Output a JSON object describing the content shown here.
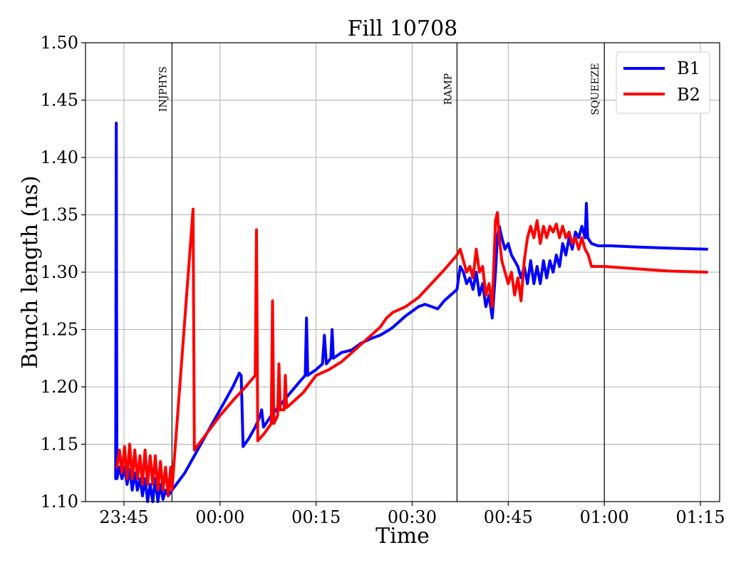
{
  "chart_data": {
    "type": "line",
    "title": "Fill 10708",
    "xlabel": "Time",
    "ylabel": "Bunch length (ns)",
    "x_axis": {
      "type": "time",
      "range": [
        "23:39",
        "01:18"
      ]
    },
    "ylim": [
      1.1,
      1.5
    ],
    "yticks": [
      "1.10",
      "1.15",
      "1.20",
      "1.25",
      "1.30",
      "1.35",
      "1.40",
      "1.45",
      "1.50"
    ],
    "xticks": [
      "23:45",
      "00:00",
      "00:15",
      "00:30",
      "00:45",
      "01:00",
      "01:15"
    ],
    "grid": true,
    "legend": {
      "position": "top-right"
    },
    "phases": [
      {
        "label": "INJPHYS",
        "time": "23:52.5"
      },
      {
        "label": "RAMP",
        "time": "00:37"
      },
      {
        "label": "SQUEEZE",
        "time": "01:00"
      }
    ],
    "series": [
      {
        "name": "B1",
        "color": "#0000ff",
        "points": [
          [
            "23:43.7",
            1.12
          ],
          [
            "23:43.8",
            1.43
          ],
          [
            "23:43.9",
            1.12
          ],
          [
            "23:44.3",
            1.13
          ],
          [
            "23:44.7",
            1.12
          ],
          [
            "23:45.1",
            1.13
          ],
          [
            "23:45.5",
            1.115
          ],
          [
            "23:45.9",
            1.128
          ],
          [
            "23:46.3",
            1.11
          ],
          [
            "23:46.7",
            1.125
          ],
          [
            "23:47.1",
            1.11
          ],
          [
            "23:47.5",
            1.12
          ],
          [
            "23:47.9",
            1.105
          ],
          [
            "23:48.3",
            1.12
          ],
          [
            "23:48.7",
            1.1
          ],
          [
            "23:49.1",
            1.115
          ],
          [
            "23:49.5",
            1.1
          ],
          [
            "23:49.9",
            1.12
          ],
          [
            "23:50.3",
            1.1
          ],
          [
            "23:50.7",
            1.115
          ],
          [
            "23:51.1",
            1.102
          ],
          [
            "23:51.5",
            1.11
          ],
          [
            "23:51.9",
            1.105
          ],
          [
            "23:52.5",
            1.11
          ],
          [
            "23:54.5",
            1.125
          ],
          [
            "23:56",
            1.14
          ],
          [
            "23:58",
            1.16
          ],
          [
            "00:00",
            1.18
          ],
          [
            "00:02",
            1.2
          ],
          [
            "00:03",
            1.212
          ],
          [
            "00:03.3",
            1.21
          ],
          [
            "00:03.6",
            1.148
          ],
          [
            "00:04.5",
            1.155
          ],
          [
            "00:05.5",
            1.165
          ],
          [
            "00:06.3",
            1.175
          ],
          [
            "00:06.5",
            1.18
          ],
          [
            "00:06.8",
            1.165
          ],
          [
            "00:08",
            1.175
          ],
          [
            "00:09.5",
            1.185
          ],
          [
            "00:11",
            1.195
          ],
          [
            "00:12.5",
            1.205
          ],
          [
            "00:13.3",
            1.21
          ],
          [
            "00:13.5",
            1.26
          ],
          [
            "00:13.7",
            1.21
          ],
          [
            "00:15",
            1.215
          ],
          [
            "00:16",
            1.22
          ],
          [
            "00:16.3",
            1.245
          ],
          [
            "00:16.6",
            1.22
          ],
          [
            "00:17.3",
            1.225
          ],
          [
            "00:17.5",
            1.25
          ],
          [
            "00:17.7",
            1.225
          ],
          [
            "00:19",
            1.23
          ],
          [
            "00:20.5",
            1.232
          ],
          [
            "00:22",
            1.238
          ],
          [
            "00:23.5",
            1.242
          ],
          [
            "00:25",
            1.245
          ],
          [
            "00:26.5",
            1.25
          ],
          [
            "00:27",
            1.252
          ],
          [
            "00:29",
            1.262
          ],
          [
            "00:31",
            1.27
          ],
          [
            "00:32",
            1.272
          ],
          [
            "00:33",
            1.27
          ],
          [
            "00:34",
            1.268
          ],
          [
            "00:35",
            1.275
          ],
          [
            "00:37",
            1.285
          ],
          [
            "00:37.5",
            1.305
          ],
          [
            "00:38",
            1.3
          ],
          [
            "00:38.5",
            1.29
          ],
          [
            "00:39",
            1.295
          ],
          [
            "00:39.5",
            1.285
          ],
          [
            "00:40",
            1.3
          ],
          [
            "00:40.5",
            1.28
          ],
          [
            "00:41",
            1.29
          ],
          [
            "00:41.5",
            1.27
          ],
          [
            "00:42",
            1.28
          ],
          [
            "00:42.5",
            1.26
          ],
          [
            "00:43",
            1.3
          ],
          [
            "00:43.3",
            1.33
          ],
          [
            "00:43.6",
            1.34
          ],
          [
            "00:44",
            1.33
          ],
          [
            "00:44.5",
            1.32
          ],
          [
            "00:45",
            1.325
          ],
          [
            "00:45.5",
            1.315
          ],
          [
            "00:46",
            1.31
          ],
          [
            "00:46.5",
            1.305
          ],
          [
            "00:47",
            1.295
          ],
          [
            "00:47.5",
            1.305
          ],
          [
            "00:48",
            1.29
          ],
          [
            "00:48.5",
            1.31
          ],
          [
            "00:49",
            1.29
          ],
          [
            "00:49.5",
            1.305
          ],
          [
            "00:50",
            1.29
          ],
          [
            "00:50.5",
            1.31
          ],
          [
            "00:51",
            1.295
          ],
          [
            "00:51.5",
            1.31
          ],
          [
            "00:52",
            1.3
          ],
          [
            "00:52.5",
            1.315
          ],
          [
            "00:53",
            1.305
          ],
          [
            "00:53.5",
            1.325
          ],
          [
            "00:54",
            1.315
          ],
          [
            "00:54.5",
            1.33
          ],
          [
            "00:55",
            1.32
          ],
          [
            "00:55.5",
            1.335
          ],
          [
            "00:56",
            1.33
          ],
          [
            "00:56.5",
            1.34
          ],
          [
            "00:57",
            1.33
          ],
          [
            "00:57.2",
            1.36
          ],
          [
            "00:57.4",
            1.33
          ],
          [
            "00:58",
            1.325
          ],
          [
            "00:59",
            1.323
          ],
          [
            "01:01",
            1.323
          ],
          [
            "01:05",
            1.322
          ],
          [
            "01:10",
            1.321
          ],
          [
            "01:16",
            1.32
          ]
        ]
      },
      {
        "name": "B2",
        "color": "#ff0000",
        "points": [
          [
            "23:43.9",
            1.13
          ],
          [
            "23:44.3",
            1.145
          ],
          [
            "23:44.7",
            1.125
          ],
          [
            "23:45.1",
            1.148
          ],
          [
            "23:45.5",
            1.12
          ],
          [
            "23:45.9",
            1.15
          ],
          [
            "23:46.3",
            1.12
          ],
          [
            "23:46.7",
            1.145
          ],
          [
            "23:47.1",
            1.12
          ],
          [
            "23:47.5",
            1.14
          ],
          [
            "23:47.9",
            1.115
          ],
          [
            "23:48.3",
            1.145
          ],
          [
            "23:48.7",
            1.115
          ],
          [
            "23:49.1",
            1.14
          ],
          [
            "23:49.5",
            1.115
          ],
          [
            "23:49.9",
            1.14
          ],
          [
            "23:50.3",
            1.11
          ],
          [
            "23:50.7",
            1.135
          ],
          [
            "23:51.1",
            1.11
          ],
          [
            "23:51.5",
            1.13
          ],
          [
            "23:51.9",
            1.105
          ],
          [
            "23:52.3",
            1.13
          ],
          [
            "23:52.5",
            1.11
          ],
          [
            "23:55.8",
            1.355
          ],
          [
            "23:56",
            1.145
          ],
          [
            "23:58",
            1.16
          ],
          [
            "00:00",
            1.175
          ],
          [
            "00:02",
            1.188
          ],
          [
            "00:04",
            1.2
          ],
          [
            "00:05.5",
            1.21
          ],
          [
            "00:05.7",
            1.337
          ],
          [
            "00:05.9",
            1.153
          ],
          [
            "00:07",
            1.16
          ],
          [
            "00:08",
            1.168
          ],
          [
            "00:08.2",
            1.275
          ],
          [
            "00:08.4",
            1.168
          ],
          [
            "00:09",
            1.175
          ],
          [
            "00:09.2",
            1.22
          ],
          [
            "00:09.4",
            1.18
          ],
          [
            "00:10",
            1.18
          ],
          [
            "00:10.2",
            1.21
          ],
          [
            "00:10.4",
            1.182
          ],
          [
            "00:11",
            1.185
          ],
          [
            "00:13",
            1.195
          ],
          [
            "00:15",
            1.21
          ],
          [
            "00:17",
            1.215
          ],
          [
            "00:19",
            1.222
          ],
          [
            "00:21",
            1.232
          ],
          [
            "00:23",
            1.242
          ],
          [
            "00:25",
            1.252
          ],
          [
            "00:26",
            1.26
          ],
          [
            "00:27",
            1.265
          ],
          [
            "00:29",
            1.27
          ],
          [
            "00:31",
            1.278
          ],
          [
            "00:33",
            1.29
          ],
          [
            "00:35",
            1.302
          ],
          [
            "00:37",
            1.315
          ],
          [
            "00:37.5",
            1.32
          ],
          [
            "00:38",
            1.31
          ],
          [
            "00:38.5",
            1.3
          ],
          [
            "00:39",
            1.305
          ],
          [
            "00:39.5",
            1.295
          ],
          [
            "00:40",
            1.32
          ],
          [
            "00:40.5",
            1.3
          ],
          [
            "00:41",
            1.305
          ],
          [
            "00:41.5",
            1.28
          ],
          [
            "00:42",
            1.29
          ],
          [
            "00:42.5",
            1.27
          ],
          [
            "00:43",
            1.345
          ],
          [
            "00:43.3",
            1.352
          ],
          [
            "00:43.6",
            1.33
          ],
          [
            "00:44",
            1.31
          ],
          [
            "00:44.5",
            1.3
          ],
          [
            "00:45",
            1.29
          ],
          [
            "00:45.5",
            1.3
          ],
          [
            "00:46",
            1.28
          ],
          [
            "00:46.5",
            1.295
          ],
          [
            "00:47",
            1.275
          ],
          [
            "00:47.5",
            1.31
          ],
          [
            "00:48",
            1.33
          ],
          [
            "00:48.5",
            1.34
          ],
          [
            "00:49",
            1.33
          ],
          [
            "00:49.5",
            1.345
          ],
          [
            "00:50",
            1.325
          ],
          [
            "00:50.5",
            1.34
          ],
          [
            "00:51",
            1.33
          ],
          [
            "00:51.5",
            1.34
          ],
          [
            "00:52",
            1.335
          ],
          [
            "00:52.5",
            1.342
          ],
          [
            "00:53",
            1.33
          ],
          [
            "00:53.5",
            1.34
          ],
          [
            "00:54",
            1.33
          ],
          [
            "00:54.5",
            1.335
          ],
          [
            "00:55",
            1.325
          ],
          [
            "00:55.5",
            1.33
          ],
          [
            "00:56",
            1.32
          ],
          [
            "00:56.5",
            1.33
          ],
          [
            "00:57",
            1.32
          ],
          [
            "00:57.5",
            1.315
          ],
          [
            "00:58",
            1.305
          ],
          [
            "01:00",
            1.305
          ],
          [
            "01:05",
            1.303
          ],
          [
            "01:10",
            1.301
          ],
          [
            "01:16",
            1.3
          ]
        ]
      }
    ]
  }
}
